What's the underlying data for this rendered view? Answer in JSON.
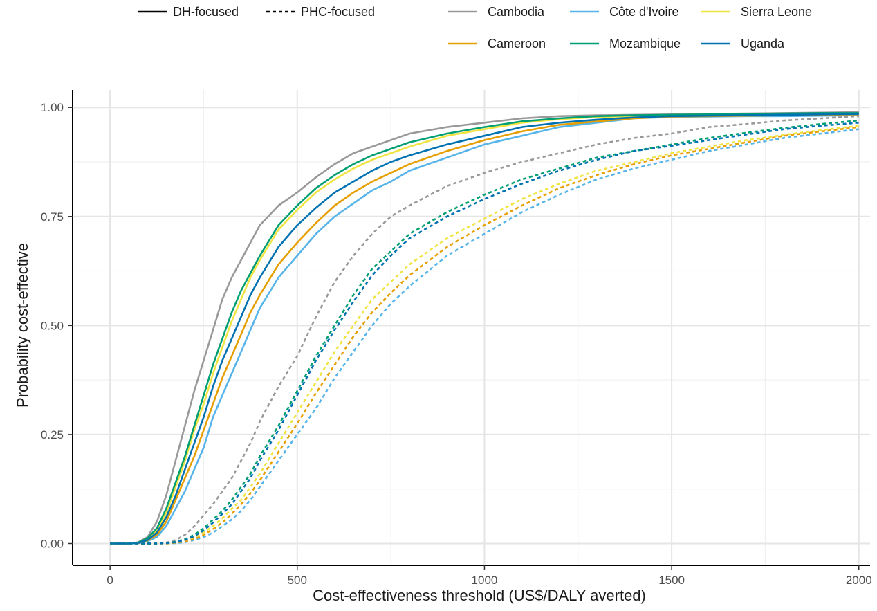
{
  "chart_data": {
    "type": "line",
    "xlabel": "Cost-effectiveness threshold (US$/DALY averted)",
    "ylabel": "Probability cost-effective",
    "xlim": [
      -100,
      2030
    ],
    "ylim": [
      -0.05,
      1.04
    ],
    "xticks": [
      0,
      500,
      1000,
      1500,
      2000
    ],
    "yticks": [
      0,
      0.25,
      0.5,
      0.75,
      1
    ],
    "ytick_labels": [
      "0.00",
      "0.25",
      "0.50",
      "0.75",
      "1.00"
    ],
    "grid": true,
    "legend_position": "top",
    "linetype_legend": [
      {
        "label": "DH-focused",
        "dash": "solid"
      },
      {
        "label": "PHC-focused",
        "dash": "dashed"
      }
    ],
    "countries": [
      {
        "name": "Cambodia",
        "color": "#999999"
      },
      {
        "name": "Côte d'Ivoire",
        "color": "#56B4E9"
      },
      {
        "name": "Sierra Leone",
        "color": "#F0E442"
      },
      {
        "name": "Cameroon",
        "color": "#E69F00"
      },
      {
        "name": "Mozambique",
        "color": "#009E73"
      },
      {
        "name": "Uganda",
        "color": "#0072B2"
      }
    ],
    "x": [
      0,
      50,
      75,
      100,
      125,
      150,
      175,
      200,
      225,
      250,
      275,
      300,
      325,
      350,
      375,
      400,
      450,
      500,
      550,
      600,
      650,
      700,
      750,
      800,
      900,
      1000,
      1100,
      1200,
      1300,
      1400,
      1500,
      1600,
      1700,
      1800,
      1900,
      2000
    ],
    "series": [
      {
        "name": "Cambodia",
        "linetype": "DH-focused",
        "values": [
          0,
          0,
          0.003,
          0.015,
          0.05,
          0.11,
          0.19,
          0.27,
          0.35,
          0.42,
          0.49,
          0.56,
          0.61,
          0.65,
          0.69,
          0.73,
          0.775,
          0.805,
          0.84,
          0.87,
          0.895,
          0.91,
          0.925,
          0.94,
          0.955,
          0.965,
          0.975,
          0.98,
          0.982,
          0.983,
          0.984,
          0.985,
          0.986,
          0.987,
          0.988,
          0.989
        ]
      },
      {
        "name": "Côte d'Ivoire",
        "linetype": "DH-focused",
        "values": [
          0,
          0,
          0.001,
          0.005,
          0.015,
          0.04,
          0.08,
          0.12,
          0.17,
          0.22,
          0.29,
          0.34,
          0.39,
          0.44,
          0.49,
          0.54,
          0.61,
          0.66,
          0.71,
          0.75,
          0.78,
          0.81,
          0.83,
          0.855,
          0.885,
          0.915,
          0.935,
          0.955,
          0.965,
          0.975,
          0.978,
          0.979,
          0.98,
          0.98,
          0.981,
          0.982
        ]
      },
      {
        "name": "Sierra Leone",
        "linetype": "DH-focused",
        "values": [
          0,
          0,
          0.002,
          0.01,
          0.03,
          0.07,
          0.13,
          0.19,
          0.26,
          0.32,
          0.39,
          0.45,
          0.51,
          0.56,
          0.61,
          0.65,
          0.72,
          0.765,
          0.805,
          0.835,
          0.86,
          0.88,
          0.895,
          0.91,
          0.935,
          0.95,
          0.965,
          0.973,
          0.978,
          0.98,
          0.982,
          0.983,
          0.984,
          0.985,
          0.986,
          0.986
        ]
      },
      {
        "name": "Cameroon",
        "linetype": "DH-focused",
        "values": [
          0,
          0,
          0.001,
          0.007,
          0.02,
          0.05,
          0.1,
          0.15,
          0.2,
          0.26,
          0.32,
          0.38,
          0.43,
          0.48,
          0.53,
          0.57,
          0.64,
          0.69,
          0.735,
          0.775,
          0.805,
          0.83,
          0.85,
          0.87,
          0.9,
          0.925,
          0.945,
          0.96,
          0.968,
          0.975,
          0.979,
          0.98,
          0.981,
          0.982,
          0.983,
          0.984
        ]
      },
      {
        "name": "Mozambique",
        "linetype": "DH-focused",
        "values": [
          0,
          0,
          0.002,
          0.012,
          0.035,
          0.08,
          0.14,
          0.2,
          0.27,
          0.34,
          0.41,
          0.47,
          0.53,
          0.58,
          0.62,
          0.66,
          0.73,
          0.775,
          0.815,
          0.845,
          0.87,
          0.89,
          0.905,
          0.92,
          0.94,
          0.955,
          0.968,
          0.975,
          0.98,
          0.982,
          0.983,
          0.984,
          0.985,
          0.986,
          0.987,
          0.987
        ]
      },
      {
        "name": "Uganda",
        "linetype": "DH-focused",
        "values": [
          0,
          0,
          0.001,
          0.008,
          0.025,
          0.06,
          0.11,
          0.17,
          0.23,
          0.29,
          0.36,
          0.42,
          0.47,
          0.52,
          0.57,
          0.61,
          0.68,
          0.73,
          0.77,
          0.805,
          0.83,
          0.855,
          0.875,
          0.89,
          0.915,
          0.935,
          0.955,
          0.965,
          0.972,
          0.977,
          0.98,
          0.981,
          0.982,
          0.983,
          0.984,
          0.985
        ]
      },
      {
        "name": "Cambodia",
        "linetype": "PHC-focused",
        "values": [
          0,
          0,
          0,
          0,
          0,
          0.002,
          0.008,
          0.02,
          0.04,
          0.065,
          0.09,
          0.12,
          0.15,
          0.19,
          0.23,
          0.28,
          0.36,
          0.43,
          0.52,
          0.6,
          0.66,
          0.71,
          0.75,
          0.775,
          0.82,
          0.85,
          0.875,
          0.895,
          0.915,
          0.93,
          0.94,
          0.955,
          0.962,
          0.97,
          0.975,
          0.98
        ]
      },
      {
        "name": "Côte d'Ivoire",
        "linetype": "PHC-focused",
        "values": [
          0,
          0,
          0,
          0,
          0,
          0,
          0.001,
          0.003,
          0.008,
          0.015,
          0.025,
          0.04,
          0.055,
          0.075,
          0.1,
          0.13,
          0.19,
          0.25,
          0.31,
          0.38,
          0.44,
          0.5,
          0.55,
          0.59,
          0.66,
          0.71,
          0.76,
          0.8,
          0.835,
          0.86,
          0.88,
          0.9,
          0.915,
          0.93,
          0.94,
          0.95
        ]
      },
      {
        "name": "Sierra Leone",
        "linetype": "PHC-focused",
        "values": [
          0,
          0,
          0,
          0,
          0,
          0.001,
          0.003,
          0.008,
          0.015,
          0.025,
          0.04,
          0.058,
          0.08,
          0.1,
          0.13,
          0.16,
          0.23,
          0.3,
          0.37,
          0.44,
          0.5,
          0.56,
          0.6,
          0.64,
          0.7,
          0.745,
          0.79,
          0.825,
          0.855,
          0.875,
          0.895,
          0.91,
          0.925,
          0.937,
          0.948,
          0.958
        ]
      },
      {
        "name": "Cameroon",
        "linetype": "PHC-focused",
        "values": [
          0,
          0,
          0,
          0,
          0,
          0,
          0.002,
          0.005,
          0.01,
          0.02,
          0.033,
          0.048,
          0.068,
          0.09,
          0.115,
          0.145,
          0.21,
          0.275,
          0.345,
          0.41,
          0.475,
          0.53,
          0.575,
          0.615,
          0.68,
          0.73,
          0.775,
          0.815,
          0.845,
          0.87,
          0.89,
          0.905,
          0.92,
          0.935,
          0.945,
          0.955
        ]
      },
      {
        "name": "Mozambique",
        "linetype": "PHC-focused",
        "values": [
          0,
          0,
          0,
          0,
          0,
          0.001,
          0.004,
          0.01,
          0.02,
          0.035,
          0.055,
          0.075,
          0.1,
          0.13,
          0.16,
          0.2,
          0.27,
          0.35,
          0.43,
          0.5,
          0.57,
          0.63,
          0.67,
          0.71,
          0.76,
          0.8,
          0.835,
          0.86,
          0.885,
          0.9,
          0.915,
          0.93,
          0.942,
          0.953,
          0.962,
          0.97
        ]
      },
      {
        "name": "Uganda",
        "linetype": "PHC-focused",
        "values": [
          0,
          0,
          0,
          0,
          0,
          0.001,
          0.003,
          0.008,
          0.017,
          0.03,
          0.048,
          0.068,
          0.09,
          0.12,
          0.15,
          0.19,
          0.26,
          0.34,
          0.42,
          0.49,
          0.555,
          0.615,
          0.66,
          0.7,
          0.75,
          0.79,
          0.825,
          0.855,
          0.88,
          0.9,
          0.912,
          0.925,
          0.938,
          0.95,
          0.958,
          0.965
        ]
      }
    ]
  }
}
